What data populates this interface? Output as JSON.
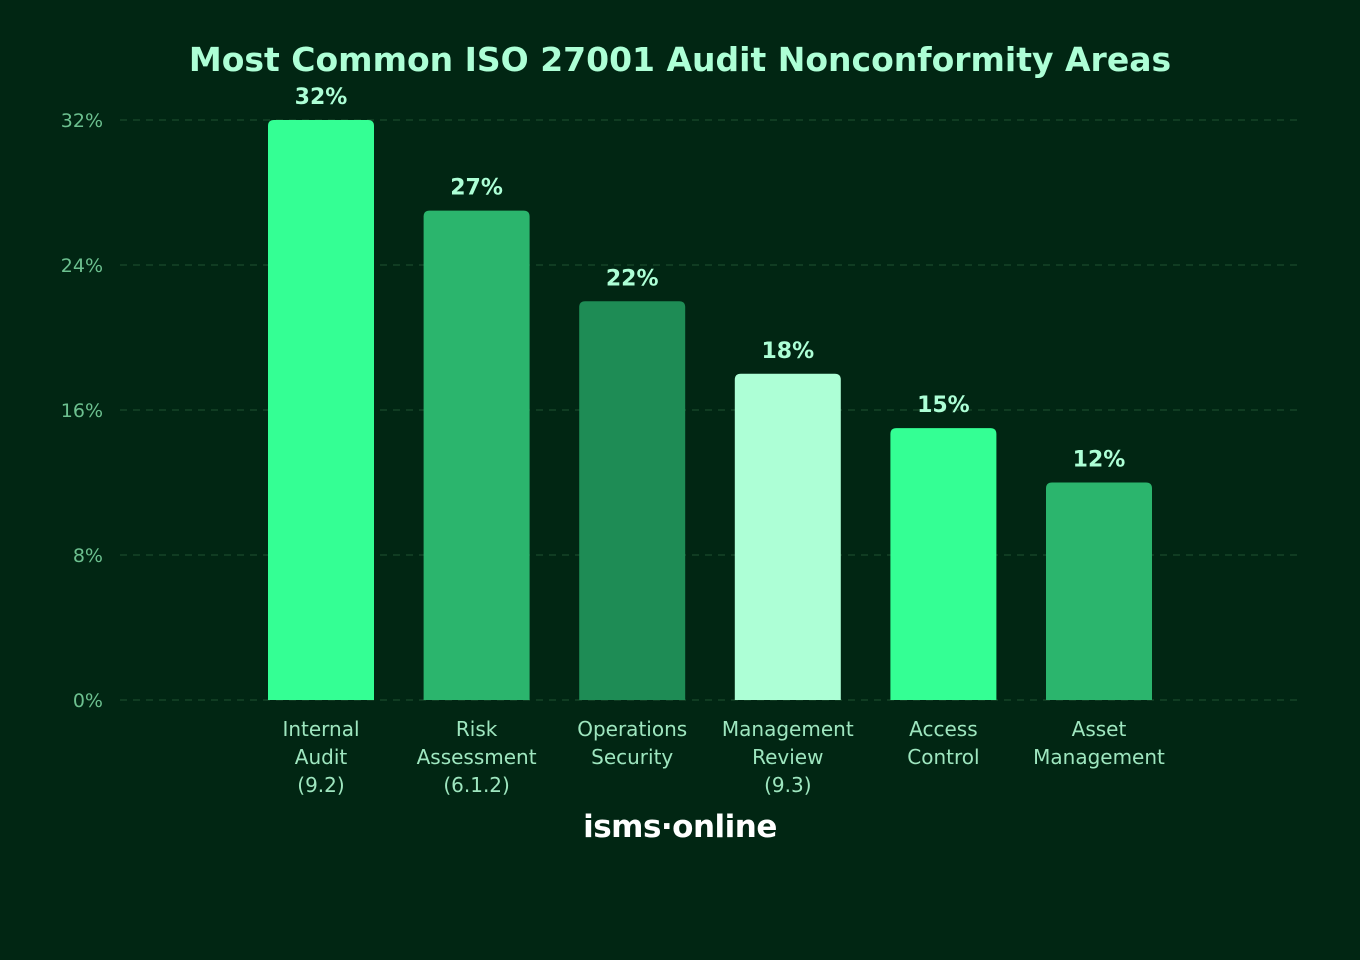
{
  "chart_data": {
    "type": "bar",
    "title": "Most Common ISO 27001 Audit Nonconformity Areas",
    "xlabel": "",
    "ylabel": "",
    "categories": [
      [
        "Internal",
        "Audit",
        "(9.2)"
      ],
      [
        "Risk",
        "Assessment",
        "(6.1.2)"
      ],
      [
        "Operations",
        "Security"
      ],
      [
        "Management",
        "Review",
        "(9.3)"
      ],
      [
        "Access",
        "Control"
      ],
      [
        "Asset",
        "Management"
      ]
    ],
    "values": [
      32,
      27,
      22,
      18,
      15,
      12
    ],
    "value_labels": [
      "32%",
      "27%",
      "22%",
      "18%",
      "15%",
      "12%"
    ],
    "bar_colors": [
      "#34FF94",
      "#2BB56D",
      "#1E8C55",
      "#ADFFD6",
      "#34FF94",
      "#2BB56D"
    ],
    "ylim": [
      0,
      32
    ],
    "yticks": [
      0,
      8,
      16,
      24,
      32
    ],
    "ytick_labels": [
      "0%",
      "8%",
      "16%",
      "24%",
      "32%"
    ],
    "grid": true,
    "legend": "none"
  },
  "colors": {
    "background": "#012613",
    "title": "#ADFFD6",
    "value_label": "#ADFFD6",
    "tick_label": "#6CC08F",
    "category_label": "#9EE6BF",
    "grid": "#1B4A2C",
    "logo": "#FFFFFF"
  },
  "branding": {
    "logo_text": "isms·online"
  }
}
